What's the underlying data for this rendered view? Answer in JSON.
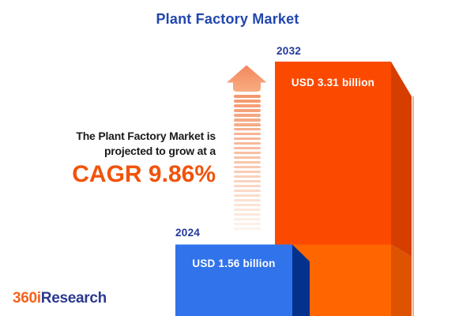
{
  "title": "Plant Factory Market",
  "message": {
    "line1": "The Plant Factory Market is",
    "line2": "projected to grow at a",
    "cagr": "CAGR 9.86%"
  },
  "chart_data": {
    "type": "bar",
    "title": "Plant Factory Market",
    "unit": "USD billion",
    "categories": [
      "2024",
      "2032"
    ],
    "values": [
      1.56,
      3.31
    ],
    "value_labels": [
      "USD 1.56 billion",
      "USD 3.31 billion"
    ],
    "cagr_percent": 9.86,
    "annotation": "The Plant Factory Market is projected to grow at a CAGR 9.86%",
    "legend_position": "none",
    "grid": false,
    "bars": [
      {
        "year": "2024",
        "label": "USD 1.56 billion",
        "value": 1.56,
        "face_color": "#3173EA",
        "side_color": "#04318C"
      },
      {
        "year": "2032",
        "label": "USD 3.31 billion",
        "value": 3.31,
        "face_color": "#FB4A00",
        "face_color_lower": "#FF6600",
        "side_color": "#D63E00",
        "side_color_lower": "#DD5300",
        "edge_line_color": "#F4731F"
      }
    ]
  },
  "arrow": {
    "meaning": "growth-up-arrow",
    "stripe_count": 29,
    "head_color_top": "#F2875C",
    "head_color_bottom": "#F9AC82",
    "stripe_color_start": "#F4996E",
    "stripe_color_end": "#FDF3EC"
  },
  "logo": {
    "part1": "360i",
    "part2": "Research",
    "part1_color": "#F4631E",
    "part2_color": "#2B3990"
  },
  "colors": {
    "background": "#FFFFFF",
    "title": "#2146AF",
    "year_label": "#23389B",
    "message_text": "#1A1A1A",
    "cagr": "#F1530B",
    "bar_value_text": "#FFFFFF"
  }
}
